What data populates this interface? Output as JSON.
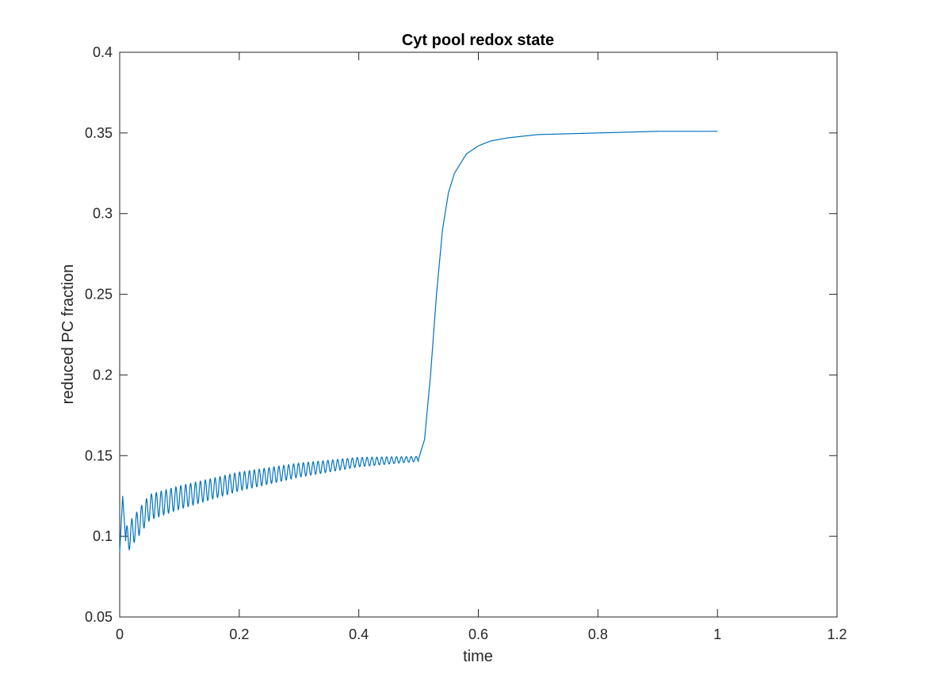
{
  "chart_data": {
    "type": "line",
    "title": "Cyt pool redox state",
    "xlabel": "time",
    "ylabel": "reduced PC fraction",
    "xlim": [
      0,
      1.2
    ],
    "ylim": [
      0.05,
      0.4
    ],
    "xticks": [
      "0",
      "0.2",
      "0.4",
      "0.6",
      "0.8",
      "1",
      "1.2"
    ],
    "yticks": [
      "0.05",
      "0.1",
      "0.15",
      "0.2",
      "0.25",
      "0.3",
      "0.35",
      "0.4"
    ],
    "grid": false,
    "series": [
      {
        "color": "#0072bd",
        "x": [
          0,
          0.005,
          0.01,
          0.05,
          0.1,
          0.2,
          0.3,
          0.4,
          0.45,
          0.5,
          0.51,
          0.52,
          0.53,
          0.54,
          0.55,
          0.56,
          0.58,
          0.6,
          0.62,
          0.65,
          0.7,
          0.8,
          0.9,
          1.0
        ],
        "y": [
          0.09,
          0.125,
          0.097,
          0.118,
          0.124,
          0.134,
          0.141,
          0.146,
          0.147,
          0.148,
          0.16,
          0.2,
          0.25,
          0.29,
          0.313,
          0.325,
          0.337,
          0.342,
          0.345,
          0.347,
          0.349,
          0.35,
          0.351,
          0.351
        ],
        "oscillation": {
          "x_start": 0.01,
          "x_end": 0.5,
          "period": 0.0082,
          "amplitude_start": 0.0085,
          "amplitude_end": 0.0015
        }
      }
    ]
  }
}
